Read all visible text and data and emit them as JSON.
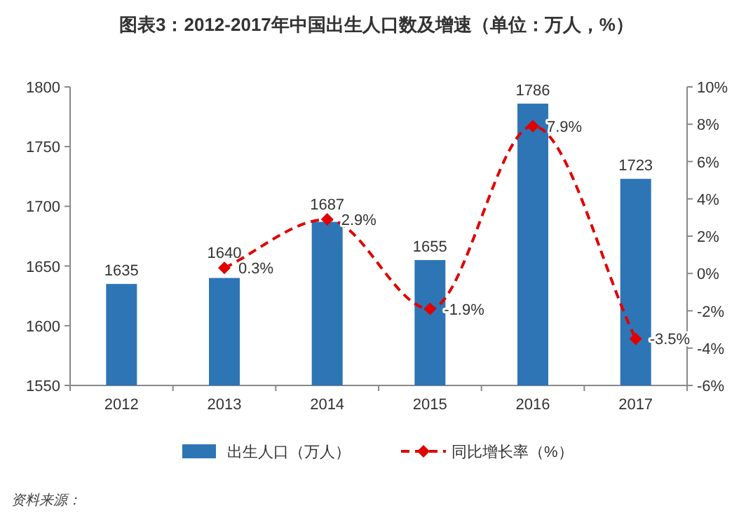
{
  "chart_data": {
    "type": "bar",
    "title": "图表3：2012-2017年中国出生人口数及增速（单位：万人，%）",
    "categories": [
      "2012",
      "2013",
      "2014",
      "2015",
      "2016",
      "2017"
    ],
    "series": [
      {
        "name": "出生人口（万人）",
        "color": "#2e75b6",
        "values": [
          1635,
          1640,
          1687,
          1655,
          1786,
          1723
        ],
        "value_labels": [
          "1635",
          "1640",
          "1687",
          "1655",
          "1786",
          "1723"
        ]
      },
      {
        "name": "同比增长率（%）",
        "type": "line",
        "axis": "y2",
        "color": "#e00000",
        "values": [
          null,
          0.3,
          2.9,
          -1.9,
          7.9,
          -3.5
        ],
        "value_labels": [
          null,
          "0.3%",
          "2.9%",
          "-1.9%",
          "7.9%",
          "-3.5%"
        ]
      }
    ],
    "ylim": [
      1550,
      1800
    ],
    "yticks": [
      1550,
      1600,
      1650,
      1700,
      1750,
      1800
    ],
    "y2lim": [
      -6,
      10
    ],
    "y2ticks": [
      {
        "value": -6,
        "label": "-6%"
      },
      {
        "value": -4,
        "label": "-4%"
      },
      {
        "value": -2,
        "label": "-2%"
      },
      {
        "value": 0,
        "label": "0%"
      },
      {
        "value": 2,
        "label": "2%"
      },
      {
        "value": 4,
        "label": "4%"
      },
      {
        "value": 6,
        "label": "6%"
      },
      {
        "value": 8,
        "label": "8%"
      },
      {
        "value": 10,
        "label": "10%"
      }
    ],
    "marker": "diamond",
    "line_style": "dashed",
    "legend": "bottom",
    "annotations": [
      "资料来源："
    ]
  }
}
